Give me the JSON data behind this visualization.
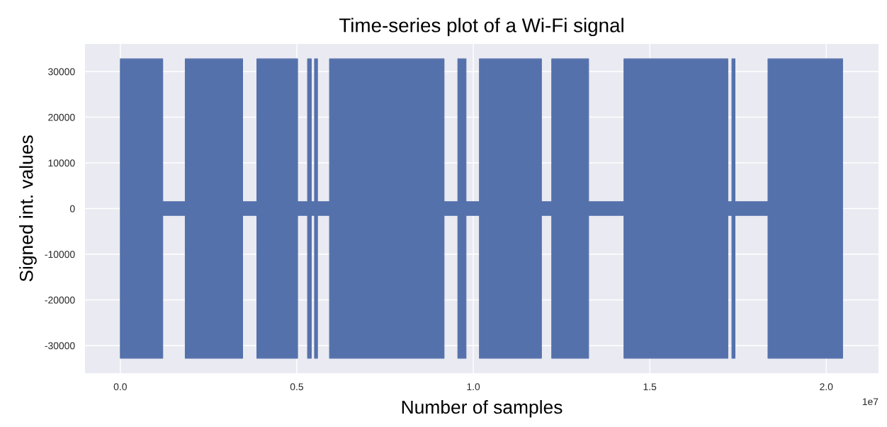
{
  "chart_data": {
    "type": "area",
    "title": "Time-series plot of a Wi-Fi signal",
    "xlabel": "Number of samples",
    "ylabel": "Signed int. values",
    "x": [
      0,
      0.1202,
      0.1202,
      0.184,
      0.184,
      0.3465,
      0.3465,
      0.3869,
      0.3869,
      0.5022,
      0.5022,
      0.5305,
      0.5305,
      0.541,
      0.541,
      0.5503,
      0.5503,
      0.5586,
      0.5586,
      0.5927,
      0.5927,
      0.9172,
      0.9172,
      0.9562,
      0.9562,
      0.9794,
      0.9794,
      1.0174,
      1.0174,
      1.1931,
      1.1931,
      1.2222,
      1.2222,
      1.3267,
      1.3267,
      1.4269,
      1.4269,
      1.7212,
      1.7212,
      1.7327,
      1.7327,
      1.7414,
      1.7414,
      1.8349,
      1.8349,
      2.0463
    ],
    "series": [
      {
        "color": "#5471ab",
        "values": [
          32767,
          32767,
          1500,
          1500,
          32767,
          32767,
          1500,
          1500,
          32767,
          32767,
          1500,
          1500,
          32767,
          32767,
          1500,
          1500,
          32767,
          32767,
          1500,
          1500,
          32767,
          32767,
          1500,
          1500,
          32767,
          32767,
          1500,
          1500,
          32767,
          32767,
          1500,
          1500,
          32767,
          32767,
          1500,
          1500,
          32767,
          32767,
          1500,
          1500,
          32767,
          32767,
          1500,
          1500,
          32767,
          32767
        ]
      },
      {
        "color": "#5471ab",
        "values": [
          -32768,
          -32768,
          -1500,
          -1500,
          -32768,
          -32768,
          -1500,
          -1500,
          -32768,
          -32768,
          -1500,
          -1500,
          -32768,
          -32768,
          -1500,
          -1500,
          -32768,
          -32768,
          -1500,
          -1500,
          -32768,
          -32768,
          -1500,
          -1500,
          -32768,
          -32768,
          -1500,
          -1500,
          -32768,
          -32768,
          -1500,
          -1500,
          -32768,
          -32768,
          -1500,
          -1500,
          -32768,
          -32768,
          -1500,
          -1500,
          -32768,
          -32768,
          -1500,
          -1500,
          -32768,
          -32768
        ]
      }
    ],
    "xlim": [
      -0.1,
      2.148
    ],
    "xticks": [
      {
        "value": 0,
        "label": "0.0"
      },
      {
        "value": 0.5,
        "label": "0.5"
      },
      {
        "value": 1,
        "label": "1.0"
      },
      {
        "value": 1.5,
        "label": "1.5"
      },
      {
        "value": 2,
        "label": "2.0"
      }
    ],
    "ylim": [
      -36045,
      36044
    ],
    "yticks": [
      -30000,
      -20000,
      -10000,
      0,
      10000,
      20000,
      30000
    ],
    "grid": true,
    "annotations": [
      "1e7"
    ]
  }
}
